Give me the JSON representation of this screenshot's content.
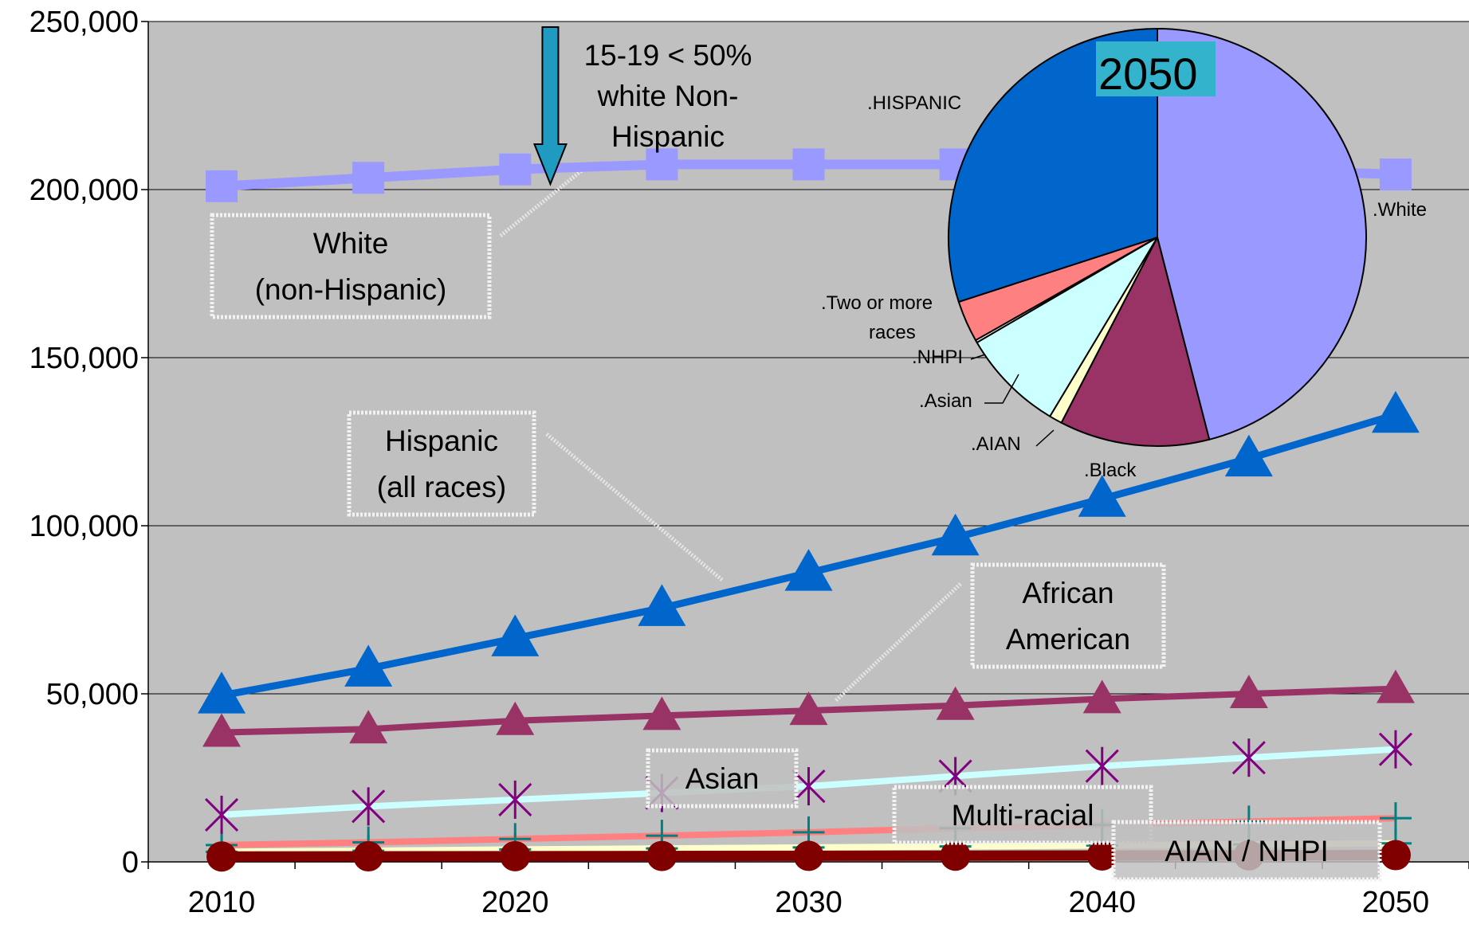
{
  "chart_data": [
    {
      "type": "line",
      "x": [
        2010,
        2015,
        2020,
        2025,
        2030,
        2035,
        2040,
        2045,
        2050
      ],
      "x_ticks": [
        "2010",
        "2020",
        "2030",
        "2040",
        "2050"
      ],
      "y_ticks": [
        "0",
        "50,000",
        "100,000",
        "150,000",
        "200,000",
        "250,000"
      ],
      "ylim": [
        0,
        250000
      ],
      "xlim": [
        2007.5,
        2052.5
      ],
      "grid": true,
      "background": "#c0c0c0",
      "series": [
        {
          "name": "White (non-Hispanic)",
          "color": "#9999ff",
          "marker": "square",
          "values": [
            201000,
            203500,
            206000,
            207500,
            207500,
            207500,
            207000,
            206000,
            204500
          ]
        },
        {
          "name": "Hispanic (all races)",
          "color": "#0066cc",
          "marker": "triangle",
          "values": [
            49500,
            57500,
            66500,
            75500,
            86000,
            96500,
            108000,
            120000,
            133000
          ]
        },
        {
          "name": "African American",
          "color": "#993366",
          "marker": "triangle",
          "values": [
            38500,
            39500,
            42000,
            43500,
            45000,
            46500,
            48500,
            50000,
            51500
          ]
        },
        {
          "name": "Asian",
          "color": "#ccffff",
          "marker": "star",
          "values": [
            14000,
            16500,
            18500,
            20500,
            22500,
            25500,
            28500,
            31000,
            33500
          ]
        },
        {
          "name": "Multi-racial",
          "color": "#ff8080",
          "marker": "plus",
          "values": [
            5000,
            5800,
            6800,
            7800,
            8800,
            10000,
            11000,
            12000,
            13000
          ]
        },
        {
          "name": "AIAN / NHPI",
          "color": "#ffffcc",
          "marker": "plus",
          "values": [
            3000,
            3300,
            3700,
            4000,
            4300,
            4600,
            4900,
            5200,
            5500
          ]
        },
        {
          "name": "AIAN / NHPI",
          "color": "#800000",
          "marker": "circle",
          "values": [
            1600,
            1650,
            1700,
            1750,
            1800,
            1850,
            1900,
            1950,
            2000
          ]
        }
      ],
      "boxed_labels": [
        {
          "series": "White (non-Hispanic)",
          "lines": [
            "White",
            "(non-Hispanic)"
          ]
        },
        {
          "series": "Hispanic (all races)",
          "lines": [
            "Hispanic",
            "(all races)"
          ]
        },
        {
          "series": "African American",
          "lines": [
            "African",
            "American"
          ]
        },
        {
          "series": "Asian",
          "lines": [
            "Asian"
          ]
        },
        {
          "series": "Multi-racial",
          "lines": [
            "Multi-racial"
          ]
        },
        {
          "series": "AIAN / NHPI",
          "lines": [
            "AIAN / NHPI"
          ]
        }
      ],
      "annotation": {
        "lines": [
          "15-19 < 50%",
          "white Non-",
          "Hispanic"
        ],
        "x": 2021.2,
        "arrow_color": "#1f9ac0"
      }
    },
    {
      "type": "pie",
      "title": "2050",
      "title_bg": "#33b3cc",
      "labels": [
        ".White",
        ".Black",
        ".AIAN",
        ".Asian",
        ".NHPI",
        ".Two or more races",
        ".HISPANIC"
      ],
      "label_lines": [
        [
          ".White"
        ],
        [
          ".Black"
        ],
        [
          ".AIAN"
        ],
        [
          ".Asian"
        ],
        [
          ".NHPI"
        ],
        [
          ".Two or more",
          "races"
        ],
        [
          ".HISPANIC"
        ]
      ],
      "values": [
        46.0,
        11.6,
        1.0,
        8.0,
        0.2,
        3.2,
        30.0
      ],
      "colors": [
        "#9999ff",
        "#993366",
        "#ffffcc",
        "#ccffff",
        "#ffffff",
        "#ff8080",
        "#0066cc"
      ]
    }
  ]
}
